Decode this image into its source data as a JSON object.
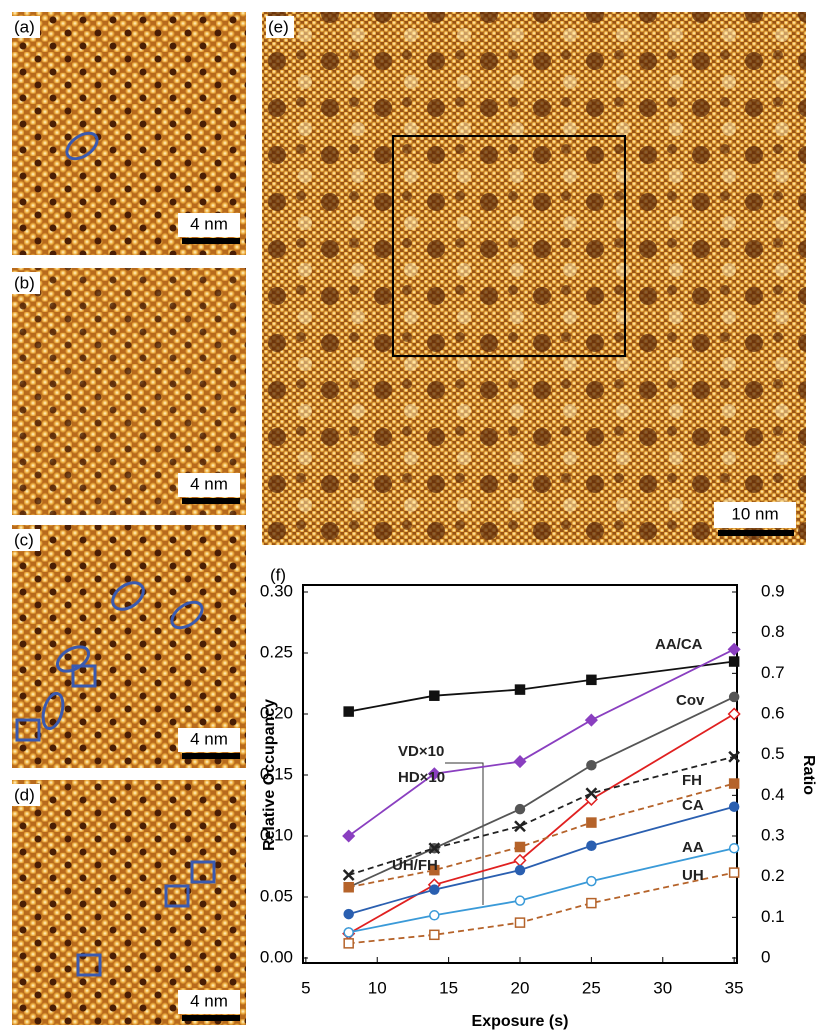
{
  "panels": {
    "a": {
      "label": "(a)",
      "scale": "4 nm"
    },
    "b": {
      "label": "(b)",
      "scale": "4 nm"
    },
    "c": {
      "label": "(c)",
      "scale": "4 nm"
    },
    "d": {
      "label": "(d)",
      "scale": "4 nm"
    },
    "e": {
      "label": "(e)",
      "scale": "10 nm"
    },
    "f": {
      "label": "(f)"
    }
  },
  "chart_data": {
    "type": "line",
    "xlabel": "Exposure (s)",
    "ylabel": "Relative Occupancy",
    "y2label": "Ratio",
    "x": [
      8,
      14,
      20,
      25,
      35
    ],
    "xlim": [
      4.8,
      35.2
    ],
    "xticks": [
      5,
      10,
      15,
      20,
      25,
      30,
      35
    ],
    "ylim": [
      0,
      0.3
    ],
    "yticks": [
      {
        "value": 0,
        "label": "0.00"
      },
      {
        "value": 0.05,
        "label": "0.05"
      },
      {
        "value": 0.1,
        "label": "0.10"
      },
      {
        "value": 0.15,
        "label": "0.15"
      },
      {
        "value": 0.2,
        "label": "0.20"
      },
      {
        "value": 0.25,
        "label": "0.25"
      },
      {
        "value": 0.3,
        "label": "0.30"
      }
    ],
    "y2lim": [
      0,
      0.9
    ],
    "y2ticks": [
      0,
      0.1,
      0.2,
      0.3,
      0.4,
      0.5,
      0.6,
      0.7,
      0.8,
      0.9
    ],
    "series": [
      {
        "name": "AA/CA",
        "color": "#111111",
        "marker": "square",
        "dash": false,
        "axis": "y2",
        "values": [
          0.606,
          0.645,
          0.66,
          0.684,
          0.729
        ]
      },
      {
        "name": "Cov",
        "color": "#555555",
        "marker": "circle",
        "dash": false,
        "values": [
          0.058,
          0.09,
          0.122,
          0.158,
          0.214
        ]
      },
      {
        "name": "HD×10",
        "color": "#8a3fc0",
        "marker": "diamond",
        "dash": false,
        "values": [
          0.1,
          0.151,
          0.161,
          0.195,
          0.253
        ]
      },
      {
        "name": "VD×10",
        "color": "#e02020",
        "marker": "diamond-open",
        "dash": false,
        "values": [
          0.02,
          0.06,
          0.08,
          0.13,
          0.2
        ]
      },
      {
        "name": "FH",
        "color": "#b5632a",
        "marker": "square",
        "dash": true,
        "values": [
          0.058,
          0.072,
          0.091,
          0.111,
          0.143
        ]
      },
      {
        "name": "UH/FH",
        "color": "#222222",
        "marker": "x",
        "dash": true,
        "axis": "y2",
        "values": [
          0.204,
          0.27,
          0.324,
          0.405,
          0.495
        ]
      },
      {
        "name": "CA",
        "color": "#2a5fb0",
        "marker": "circle",
        "dash": false,
        "values": [
          0.036,
          0.056,
          0.072,
          0.092,
          0.124
        ]
      },
      {
        "name": "AA",
        "color": "#3a9ad8",
        "marker": "circle-open",
        "dash": false,
        "values": [
          0.021,
          0.035,
          0.047,
          0.063,
          0.09
        ]
      },
      {
        "name": "UH",
        "color": "#b5632a",
        "marker": "square-open",
        "dash": true,
        "values": [
          0.012,
          0.019,
          0.029,
          0.045,
          0.07
        ]
      }
    ]
  }
}
